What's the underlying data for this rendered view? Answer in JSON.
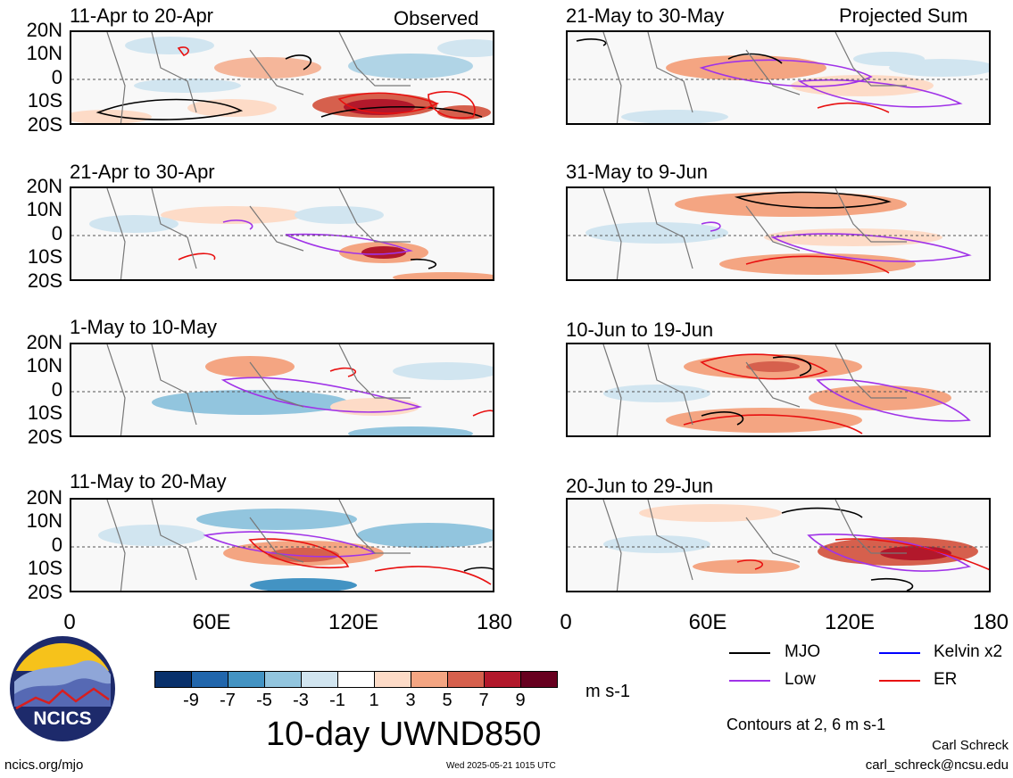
{
  "panels": [
    {
      "title": "11-Apr to 20-Apr",
      "tag": "Observed"
    },
    {
      "title": "21-May to 30-May",
      "tag": "Projected Sum"
    },
    {
      "title": "21-Apr to 30-Apr",
      "tag": ""
    },
    {
      "title": "31-May to 9-Jun",
      "tag": ""
    },
    {
      "title": "1-May to 10-May",
      "tag": ""
    },
    {
      "title": "10-Jun to 19-Jun",
      "tag": ""
    },
    {
      "title": "11-May to 20-May",
      "tag": ""
    },
    {
      "title": "20-Jun to 29-Jun",
      "tag": ""
    }
  ],
  "lat_labels": [
    "20N",
    "10N",
    "0",
    "10S",
    "20S"
  ],
  "lon_labels": [
    "0",
    "60E",
    "120E",
    "180"
  ],
  "colorbar": {
    "colors": [
      "#08306b",
      "#2166ac",
      "#4393c3",
      "#92c5de",
      "#d1e5f0",
      "#ffffff",
      "#fddbc7",
      "#f4a582",
      "#d6604d",
      "#b2182b",
      "#67001f"
    ],
    "labels": [
      "-9",
      "-7",
      "-5",
      "-3",
      "-1",
      "1",
      "3",
      "5",
      "7",
      "9"
    ],
    "unit": "m s-1"
  },
  "title": "10-day UWND850",
  "legend": [
    {
      "label": "MJO",
      "color": "#000000"
    },
    {
      "label": "Kelvin x2",
      "color": "#0000ff"
    },
    {
      "label": "Low",
      "color": "#a033e8"
    },
    {
      "label": "ER",
      "color": "#e81010"
    }
  ],
  "contour_note": "Contours at 2, 6 m s-1",
  "logo_text": "NCICS",
  "author": "Carl Schreck",
  "email": "carl_schreck@ncsu.edu",
  "site": "ncics.org/mjo",
  "timestamp": "Wed 2025-05-21 1015 UTC"
}
